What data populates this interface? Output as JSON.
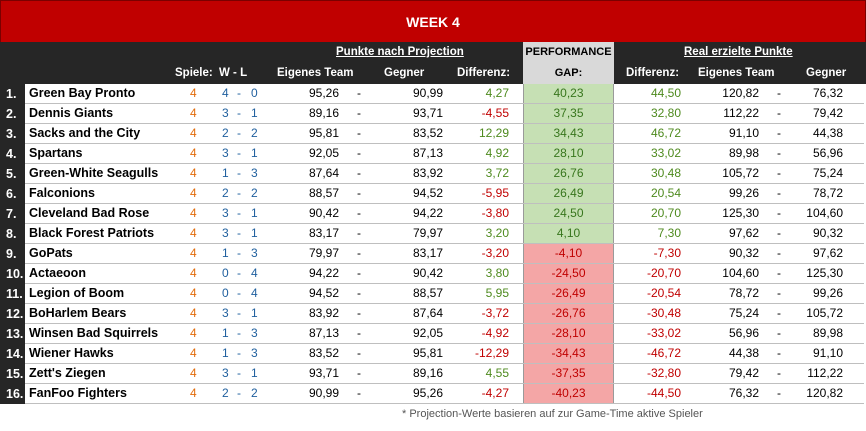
{
  "title": "WEEK 4",
  "headers": {
    "projection_group": "Punkte nach Projection",
    "performance_line1": "PERFORMANCE",
    "performance_line2": "GAP:",
    "real_group": "Real erzielte Punkte",
    "spiele": "Spiele:",
    "wl": "W  -  L",
    "eigenes_team": "Eigenes Team",
    "gegner": "Gegner",
    "differenz": "Differenz:",
    "real_differenz": "Differenz:",
    "real_eigenes_team": "Eigenes Team",
    "real_gegner": "Gegner"
  },
  "rows": [
    {
      "rank": "1.",
      "team": "Green Bay Pronto",
      "games": "4",
      "w": "4",
      "l": "0",
      "proj_own": "95,26",
      "proj_opp": "90,99",
      "proj_diff": "4,27",
      "gap": "40,23",
      "real_diff": "44,50",
      "real_own": "120,82",
      "real_opp": "76,32",
      "sign": "pos"
    },
    {
      "rank": "2.",
      "team": "Dennis Giants",
      "games": "4",
      "w": "3",
      "l": "1",
      "proj_own": "89,16",
      "proj_opp": "93,71",
      "proj_diff": "-4,55",
      "gap": "37,35",
      "real_diff": "32,80",
      "real_own": "112,22",
      "real_opp": "79,42",
      "sign": "pos"
    },
    {
      "rank": "3.",
      "team": "Sacks and the City",
      "games": "4",
      "w": "2",
      "l": "2",
      "proj_own": "95,81",
      "proj_opp": "83,52",
      "proj_diff": "12,29",
      "gap": "34,43",
      "real_diff": "46,72",
      "real_own": "91,10",
      "real_opp": "44,38",
      "sign": "pos"
    },
    {
      "rank": "4.",
      "team": "Spartans",
      "games": "4",
      "w": "3",
      "l": "1",
      "proj_own": "92,05",
      "proj_opp": "87,13",
      "proj_diff": "4,92",
      "gap": "28,10",
      "real_diff": "33,02",
      "real_own": "89,98",
      "real_opp": "56,96",
      "sign": "pos"
    },
    {
      "rank": "5.",
      "team": "Green-White Seagulls",
      "games": "4",
      "w": "1",
      "l": "3",
      "proj_own": "87,64",
      "proj_opp": "83,92",
      "proj_diff": "3,72",
      "gap": "26,76",
      "real_diff": "30,48",
      "real_own": "105,72",
      "real_opp": "75,24",
      "sign": "pos"
    },
    {
      "rank": "6.",
      "team": "Falconions",
      "games": "4",
      "w": "2",
      "l": "2",
      "proj_own": "88,57",
      "proj_opp": "94,52",
      "proj_diff": "-5,95",
      "gap": "26,49",
      "real_diff": "20,54",
      "real_own": "99,26",
      "real_opp": "78,72",
      "sign": "pos"
    },
    {
      "rank": "7.",
      "team": "Cleveland Bad Rose",
      "games": "4",
      "w": "3",
      "l": "1",
      "proj_own": "90,42",
      "proj_opp": "94,22",
      "proj_diff": "-3,80",
      "gap": "24,50",
      "real_diff": "20,70",
      "real_own": "125,30",
      "real_opp": "104,60",
      "sign": "pos"
    },
    {
      "rank": "8.",
      "team": "Black Forest Patriots",
      "games": "4",
      "w": "3",
      "l": "1",
      "proj_own": "83,17",
      "proj_opp": "79,97",
      "proj_diff": "3,20",
      "gap": "4,10",
      "real_diff": "7,30",
      "real_own": "97,62",
      "real_opp": "90,32",
      "sign": "pos"
    },
    {
      "rank": "9.",
      "team": "GoPats",
      "games": "4",
      "w": "1",
      "l": "3",
      "proj_own": "79,97",
      "proj_opp": "83,17",
      "proj_diff": "-3,20",
      "gap": "-4,10",
      "real_diff": "-7,30",
      "real_own": "90,32",
      "real_opp": "97,62",
      "sign": "neg"
    },
    {
      "rank": "10.",
      "team": "Actaeoon",
      "games": "4",
      "w": "0",
      "l": "4",
      "proj_own": "94,22",
      "proj_opp": "90,42",
      "proj_diff": "3,80",
      "gap": "-24,50",
      "real_diff": "-20,70",
      "real_own": "104,60",
      "real_opp": "125,30",
      "sign": "neg"
    },
    {
      "rank": "11.",
      "team": "Legion of Boom",
      "games": "4",
      "w": "0",
      "l": "4",
      "proj_own": "94,52",
      "proj_opp": "88,57",
      "proj_diff": "5,95",
      "gap": "-26,49",
      "real_diff": "-20,54",
      "real_own": "78,72",
      "real_opp": "99,26",
      "sign": "neg"
    },
    {
      "rank": "12.",
      "team": "BoHarlem Bears",
      "games": "4",
      "w": "3",
      "l": "1",
      "proj_own": "83,92",
      "proj_opp": "87,64",
      "proj_diff": "-3,72",
      "gap": "-26,76",
      "real_diff": "-30,48",
      "real_own": "75,24",
      "real_opp": "105,72",
      "sign": "neg"
    },
    {
      "rank": "13.",
      "team": "Winsen Bad Squirrels",
      "games": "4",
      "w": "1",
      "l": "3",
      "proj_own": "87,13",
      "proj_opp": "92,05",
      "proj_diff": "-4,92",
      "gap": "-28,10",
      "real_diff": "-33,02",
      "real_own": "56,96",
      "real_opp": "89,98",
      "sign": "neg"
    },
    {
      "rank": "14.",
      "team": "Wiener Hawks",
      "games": "4",
      "w": "1",
      "l": "3",
      "proj_own": "83,52",
      "proj_opp": "95,81",
      "proj_diff": "-12,29",
      "gap": "-34,43",
      "real_diff": "-46,72",
      "real_own": "44,38",
      "real_opp": "91,10",
      "sign": "neg"
    },
    {
      "rank": "15.",
      "team": "Zett's Ziegen",
      "games": "4",
      "w": "3",
      "l": "1",
      "proj_own": "93,71",
      "proj_opp": "89,16",
      "proj_diff": "4,55",
      "gap": "-37,35",
      "real_diff": "-32,80",
      "real_own": "79,42",
      "real_opp": "112,22",
      "sign": "neg"
    },
    {
      "rank": "16.",
      "team": "FanFoo Fighters",
      "games": "4",
      "w": "2",
      "l": "2",
      "proj_own": "90,99",
      "proj_opp": "95,26",
      "proj_diff": "-4,27",
      "gap": "-40,23",
      "real_diff": "-44,50",
      "real_own": "76,32",
      "real_opp": "120,82",
      "sign": "neg"
    }
  ],
  "separator": "-",
  "footer": "* Projection-Werte basieren auf zur Game-Time aktive Spieler",
  "colors": {
    "header_bg": "#c00000",
    "dark": "#262626",
    "gap_pos": "#c6e0b4",
    "gap_neg": "#f4a6a6",
    "wins_color": "#1f5f9e",
    "games_color": "#e26b0a"
  }
}
